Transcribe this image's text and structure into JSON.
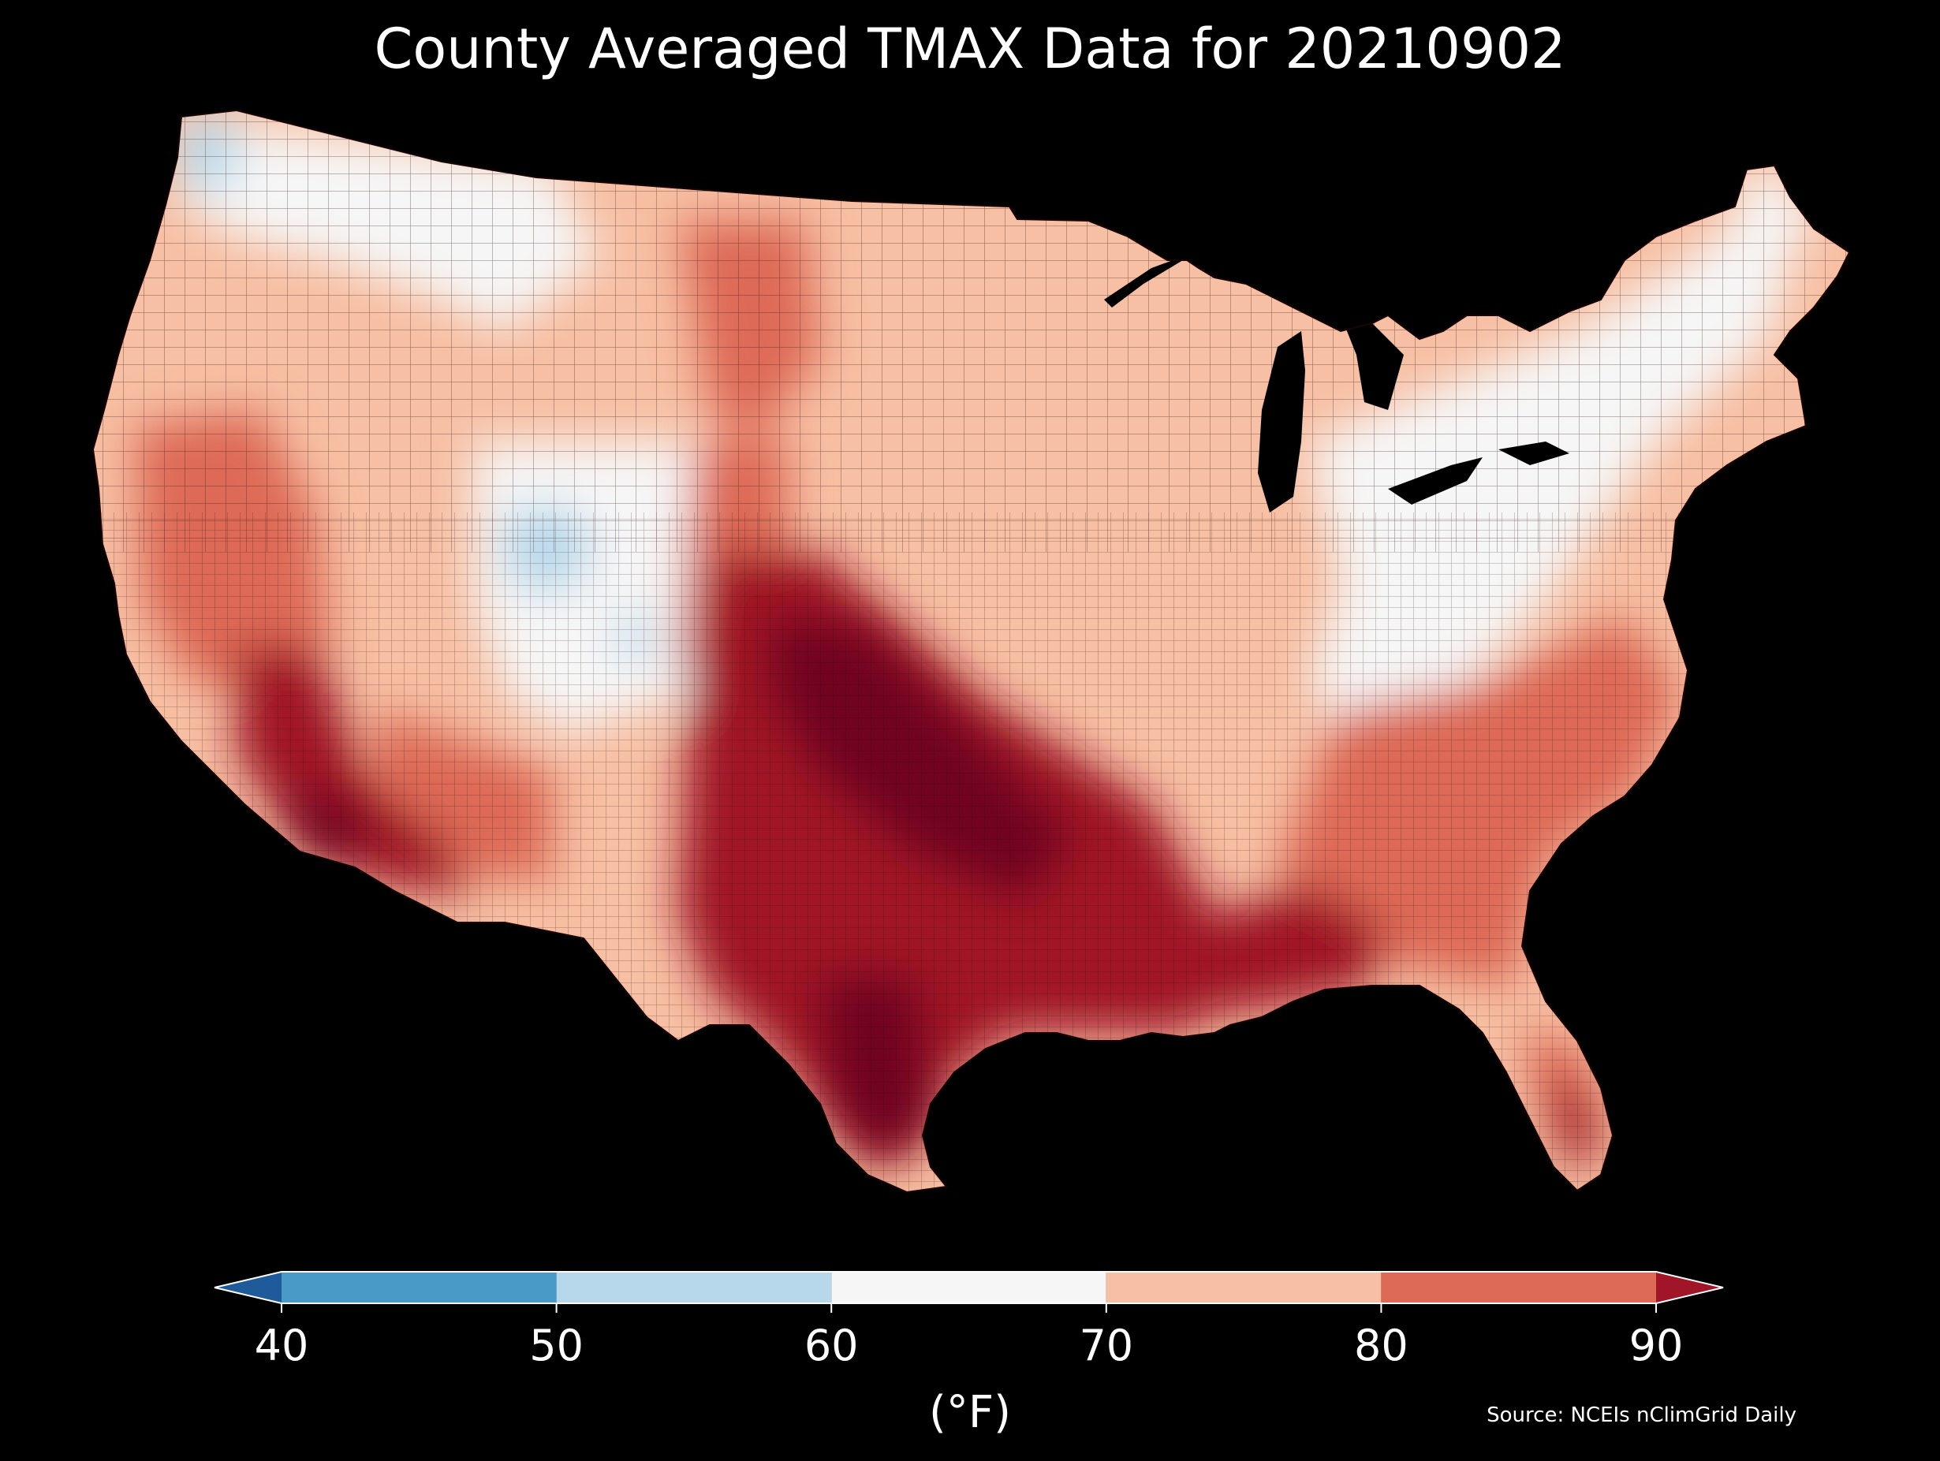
{
  "title": "County Averaged TMAX Data for 20210902",
  "source": "Source: NCEIs nClimGrid Daily",
  "map": {
    "region": "contiguous-united-states",
    "boundaries": "county",
    "background": "#000000",
    "boundary_color": "#2a0a0a"
  },
  "colorbar": {
    "unit_label": "(°F)",
    "extend": "both",
    "ticks": [
      "40",
      "50",
      "60",
      "70",
      "80",
      "90"
    ],
    "bins": [
      {
        "from": null,
        "to": 40,
        "color": "#1f5a9a"
      },
      {
        "from": 40,
        "to": 50,
        "color": "#4a9ac8"
      },
      {
        "from": 50,
        "to": 60,
        "color": "#b7d8ea"
      },
      {
        "from": 60,
        "to": 70,
        "color": "#f6f6f6"
      },
      {
        "from": 70,
        "to": 80,
        "color": "#f7bfa3"
      },
      {
        "from": 80,
        "to": 90,
        "color": "#dd6a56"
      },
      {
        "from": 90,
        "to": null,
        "color": "#a01628"
      }
    ]
  },
  "temperature_regions": [
    {
      "name": "pacific-northwest-coast",
      "tmax_bin": "50-60"
    },
    {
      "name": "northern-rockies",
      "tmax_bin": "60-70"
    },
    {
      "name": "great-basin",
      "tmax_bin": "80-90"
    },
    {
      "name": "central-rockies",
      "tmax_bin": "50-60"
    },
    {
      "name": "desert-southwest",
      "tmax_bin": "90+"
    },
    {
      "name": "northern-plains",
      "tmax_bin": "80-90"
    },
    {
      "name": "southern-plains",
      "tmax_bin": "90+"
    },
    {
      "name": "midwest",
      "tmax_bin": "70-80"
    },
    {
      "name": "appalachians",
      "tmax_bin": "60-70"
    },
    {
      "name": "northeast",
      "tmax_bin": "60-70"
    },
    {
      "name": "southeast",
      "tmax_bin": "80-90"
    },
    {
      "name": "gulf-coast",
      "tmax_bin": "90+"
    },
    {
      "name": "florida",
      "tmax_bin": "80-90"
    }
  ]
}
